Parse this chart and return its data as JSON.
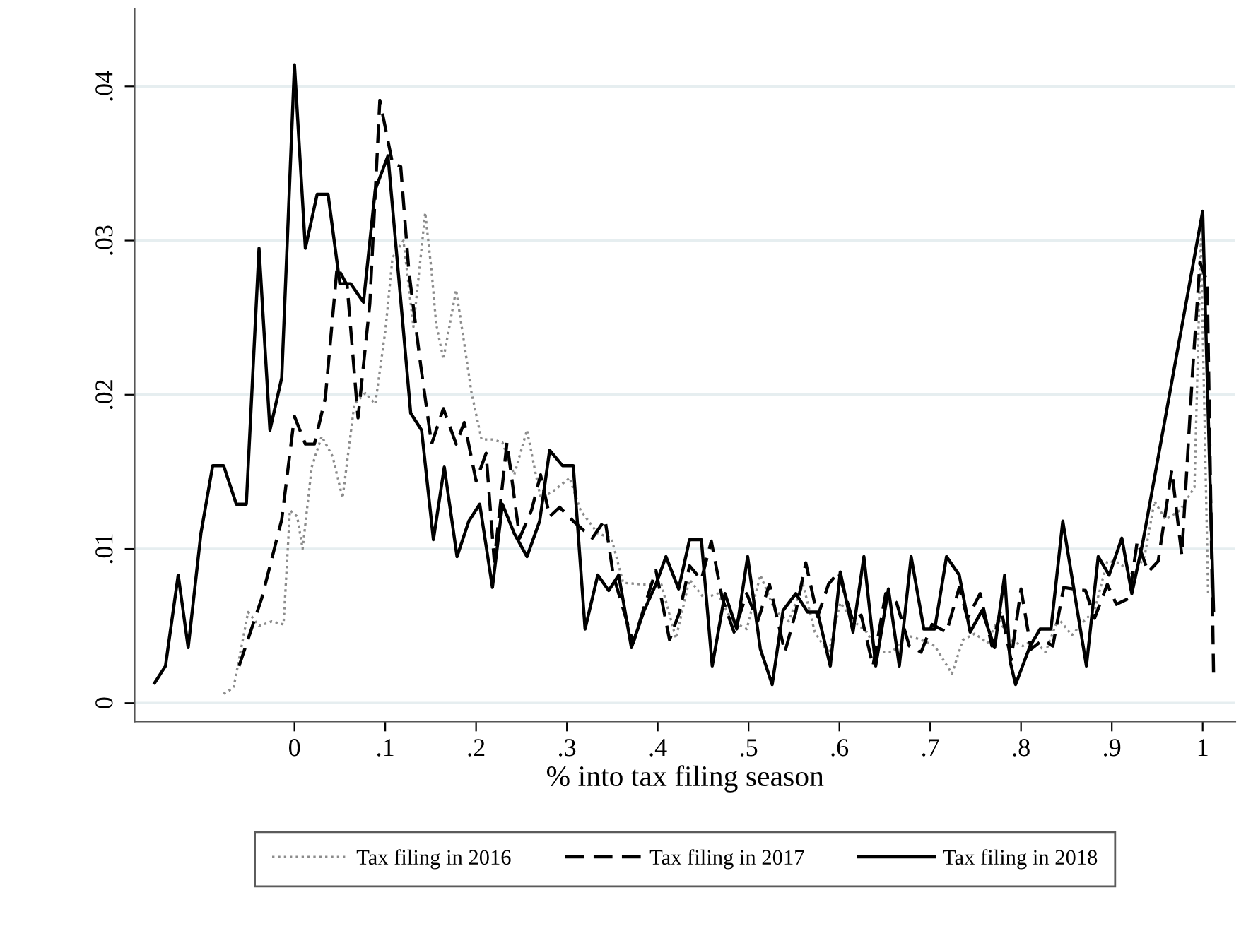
{
  "chart_data": {
    "type": "line",
    "xlabel": "% into tax filing season",
    "xlim": [
      -0.176,
      1.036
    ],
    "ylim": [
      -0.0012,
      0.045
    ],
    "xticks": [
      0,
      {
        "value": 0.1,
        "label": ".1"
      },
      {
        "value": 0.2,
        "label": ".2"
      },
      {
        "value": 0.3,
        "label": ".3"
      },
      {
        "value": 0.4,
        "label": ".4"
      },
      {
        "value": 0.5,
        "label": ".5"
      },
      {
        "value": 0.6,
        "label": ".6"
      },
      {
        "value": 0.7,
        "label": ".7"
      },
      {
        "value": 0.8,
        "label": ".8"
      },
      {
        "value": 0.9,
        "label": ".9"
      },
      1
    ],
    "yticks": [
      0,
      {
        "value": 0.01,
        "label": ".01"
      },
      {
        "value": 0.02,
        "label": ".02"
      },
      {
        "value": 0.03,
        "label": ".03"
      },
      {
        "value": 0.04,
        "label": ".04"
      }
    ],
    "grid": "y",
    "legend": "bottom",
    "marker": "none",
    "series": [
      {
        "name": "Tax filing in 2016",
        "color": "#8c8c8c",
        "line_style": "dotted",
        "x": [
          -0.078,
          -0.067,
          -0.051,
          -0.039,
          -0.025,
          -0.012,
          -0.005,
          0.003,
          0.009,
          0.019,
          0.03,
          0.042,
          0.053,
          0.066,
          0.078,
          0.089,
          0.1,
          0.108,
          0.12,
          0.131,
          0.144,
          0.151,
          0.156,
          0.164,
          0.178,
          0.186,
          0.195,
          0.206,
          0.218,
          0.229,
          0.242,
          0.256,
          0.271,
          0.284,
          0.303,
          0.315,
          0.334,
          0.349,
          0.362,
          0.382,
          0.404,
          0.42,
          0.435,
          0.451,
          0.466,
          0.482,
          0.498,
          0.513,
          0.529,
          0.544,
          0.56,
          0.573,
          0.588,
          0.601,
          0.616,
          0.63,
          0.643,
          0.658,
          0.674,
          0.69,
          0.705,
          0.724,
          0.736,
          0.749,
          0.763,
          0.775,
          0.788,
          0.802,
          0.814,
          0.827,
          0.841,
          0.856,
          0.869,
          0.881,
          0.895,
          0.908,
          0.924,
          0.936,
          0.947,
          0.959,
          0.975,
          0.991,
          0.998,
          1.006
        ],
        "values": [
          0.0006,
          0.001,
          0.0059,
          0.005,
          0.0053,
          0.0051,
          0.0125,
          0.0121,
          0.01,
          0.0153,
          0.0173,
          0.016,
          0.0133,
          0.0194,
          0.0201,
          0.0194,
          0.0241,
          0.0289,
          0.03,
          0.0244,
          0.0318,
          0.028,
          0.0246,
          0.0223,
          0.0268,
          0.0237,
          0.0201,
          0.0171,
          0.0171,
          0.0169,
          0.0148,
          0.0177,
          0.0133,
          0.0137,
          0.0146,
          0.0125,
          0.011,
          0.0107,
          0.0078,
          0.0077,
          0.0077,
          0.0042,
          0.008,
          0.0068,
          0.0071,
          0.0053,
          0.0048,
          0.0083,
          0.006,
          0.0053,
          0.0077,
          0.0046,
          0.0032,
          0.0065,
          0.0053,
          0.0046,
          0.0033,
          0.0033,
          0.0044,
          0.0041,
          0.0037,
          0.0019,
          0.0041,
          0.0045,
          0.0039,
          0.0055,
          0.0041,
          0.0037,
          0.0041,
          0.0033,
          0.0055,
          0.0044,
          0.0053,
          0.006,
          0.0092,
          0.0091,
          0.0083,
          0.0095,
          0.0131,
          0.0119,
          0.0125,
          0.014,
          0.0301,
          0.0071
        ]
      },
      {
        "name": "Tax filing in 2017",
        "color": "#000000",
        "line_style": "dashed",
        "x": [
          -0.061,
          -0.036,
          -0.014,
          0,
          0.012,
          0.022,
          0.034,
          0.047,
          0.058,
          0.07,
          0.083,
          0.094,
          0.108,
          0.117,
          0.126,
          0.139,
          0.151,
          0.164,
          0.178,
          0.187,
          0.2,
          0.211,
          0.22,
          0.234,
          0.248,
          0.261,
          0.271,
          0.281,
          0.292,
          0.307,
          0.328,
          0.342,
          0.351,
          0.373,
          0.385,
          0.398,
          0.413,
          0.424,
          0.435,
          0.448,
          0.459,
          0.471,
          0.484,
          0.498,
          0.51,
          0.523,
          0.54,
          0.552,
          0.563,
          0.576,
          0.588,
          0.599,
          0.615,
          0.624,
          0.637,
          0.651,
          0.663,
          0.677,
          0.69,
          0.702,
          0.718,
          0.732,
          0.741,
          0.755,
          0.768,
          0.778,
          0.789,
          0.8,
          0.811,
          0.824,
          0.835,
          0.847,
          0.858,
          0.871,
          0.881,
          0.895,
          0.905,
          0.919,
          0.928,
          0.94,
          0.951,
          0.966,
          0.977,
          0.989,
          0.997,
          1.005,
          1.012
        ],
        "values": [
          0.0024,
          0.0068,
          0.0119,
          0.0186,
          0.0168,
          0.0168,
          0.0198,
          0.0283,
          0.0271,
          0.0185,
          0.0259,
          0.0391,
          0.035,
          0.0348,
          0.028,
          0.0219,
          0.0168,
          0.0191,
          0.0168,
          0.0182,
          0.0144,
          0.0162,
          0.0092,
          0.0169,
          0.0107,
          0.0125,
          0.0148,
          0.0121,
          0.0127,
          0.0118,
          0.0107,
          0.0119,
          0.0083,
          0.0039,
          0.0062,
          0.0086,
          0.0041,
          0.0059,
          0.0089,
          0.008,
          0.0105,
          0.0068,
          0.0046,
          0.0071,
          0.0053,
          0.0077,
          0.0033,
          0.0059,
          0.0091,
          0.0056,
          0.0077,
          0.0085,
          0.0053,
          0.0057,
          0.0024,
          0.0071,
          0.0065,
          0.0037,
          0.0033,
          0.0051,
          0.0046,
          0.0075,
          0.0055,
          0.0071,
          0.0037,
          0.0061,
          0.0028,
          0.0074,
          0.0035,
          0.0041,
          0.0037,
          0.0075,
          0.0074,
          0.0073,
          0.0055,
          0.0077,
          0.0064,
          0.0068,
          0.0105,
          0.0085,
          0.0092,
          0.0151,
          0.0096,
          0.0216,
          0.0286,
          0.0273,
          0.0019
        ]
      },
      {
        "name": "Tax filing in 2018",
        "color": "#000000",
        "line_style": "solid",
        "x": [
          -0.154,
          -0.142,
          -0.128,
          -0.117,
          -0.103,
          -0.09,
          -0.078,
          -0.064,
          -0.053,
          -0.039,
          -0.027,
          -0.014,
          0,
          0.012,
          0.025,
          0.037,
          0.05,
          0.062,
          0.076,
          0.089,
          0.103,
          0.128,
          0.14,
          0.153,
          0.165,
          0.179,
          0.192,
          0.204,
          0.218,
          0.229,
          0.242,
          0.256,
          0.27,
          0.281,
          0.295,
          0.307,
          0.32,
          0.334,
          0.346,
          0.357,
          0.371,
          0.385,
          0.398,
          0.409,
          0.423,
          0.435,
          0.448,
          0.46,
          0.474,
          0.487,
          0.499,
          0.513,
          0.526,
          0.538,
          0.552,
          0.565,
          0.576,
          0.59,
          0.601,
          0.615,
          0.627,
          0.64,
          0.654,
          0.666,
          0.679,
          0.693,
          0.705,
          0.718,
          0.732,
          0.744,
          0.757,
          0.771,
          0.782,
          0.788,
          0.794,
          0.81,
          0.821,
          0.833,
          0.846,
          0.872,
          0.885,
          0.897,
          0.911,
          0.922,
          0.934,
          1.0,
          1.012
        ],
        "values": [
          0.0013,
          0.0024,
          0.0083,
          0.0036,
          0.011,
          0.0154,
          0.0154,
          0.0129,
          0.0129,
          0.0295,
          0.0177,
          0.0211,
          0.0414,
          0.0295,
          0.033,
          0.033,
          0.0272,
          0.0272,
          0.026,
          0.0333,
          0.0355,
          0.0188,
          0.0177,
          0.0106,
          0.0153,
          0.0095,
          0.0118,
          0.0129,
          0.0075,
          0.0129,
          0.011,
          0.0095,
          0.0118,
          0.0164,
          0.0154,
          0.0154,
          0.0048,
          0.0083,
          0.0073,
          0.0083,
          0.0036,
          0.006,
          0.0077,
          0.0095,
          0.0074,
          0.0106,
          0.0106,
          0.0024,
          0.0071,
          0.0048,
          0.0095,
          0.0035,
          0.0012,
          0.006,
          0.0071,
          0.0059,
          0.0059,
          0.0024,
          0.0085,
          0.0046,
          0.0095,
          0.0024,
          0.0074,
          0.0024,
          0.0095,
          0.0048,
          0.0048,
          0.0095,
          0.0083,
          0.0046,
          0.006,
          0.0036,
          0.0083,
          0.0027,
          0.0012,
          0.0037,
          0.0048,
          0.0048,
          0.0118,
          0.0024,
          0.0095,
          0.0083,
          0.0107,
          0.0071,
          0.0104,
          0.0319,
          0.006
        ]
      }
    ]
  }
}
